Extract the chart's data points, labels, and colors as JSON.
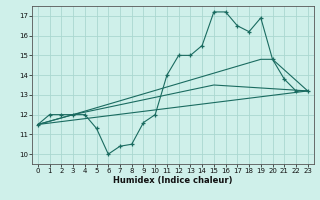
{
  "xlabel": "Humidex (Indice chaleur)",
  "bg_color": "#cff0ea",
  "grid_color": "#aad8d0",
  "line_color": "#1a6b60",
  "xlim": [
    -0.5,
    23.5
  ],
  "ylim": [
    9.5,
    17.5
  ],
  "yticks": [
    10,
    11,
    12,
    13,
    14,
    15,
    16,
    17
  ],
  "xticks": [
    0,
    1,
    2,
    3,
    4,
    5,
    6,
    7,
    8,
    9,
    10,
    11,
    12,
    13,
    14,
    15,
    16,
    17,
    18,
    19,
    20,
    21,
    22,
    23
  ],
  "lines": [
    {
      "x": [
        0,
        1,
        2,
        3,
        4,
        5,
        6,
        7,
        8,
        9,
        10,
        11,
        12,
        13,
        14,
        15,
        16,
        17,
        18,
        19,
        20,
        21,
        22,
        23
      ],
      "y": [
        11.5,
        12.0,
        12.0,
        12.0,
        12.0,
        11.3,
        10.0,
        10.4,
        10.5,
        11.6,
        12.0,
        14.0,
        15.0,
        15.0,
        15.5,
        17.2,
        17.2,
        16.5,
        16.2,
        16.9,
        14.8,
        13.8,
        13.2,
        13.2
      ],
      "marker": true
    },
    {
      "x": [
        0,
        23
      ],
      "y": [
        11.5,
        13.2
      ],
      "marker": false
    },
    {
      "x": [
        0,
        3,
        15,
        23
      ],
      "y": [
        11.5,
        12.0,
        13.5,
        13.2
      ],
      "marker": false
    },
    {
      "x": [
        0,
        3,
        19,
        20,
        23
      ],
      "y": [
        11.5,
        12.0,
        14.8,
        14.8,
        13.2
      ],
      "marker": false
    }
  ]
}
